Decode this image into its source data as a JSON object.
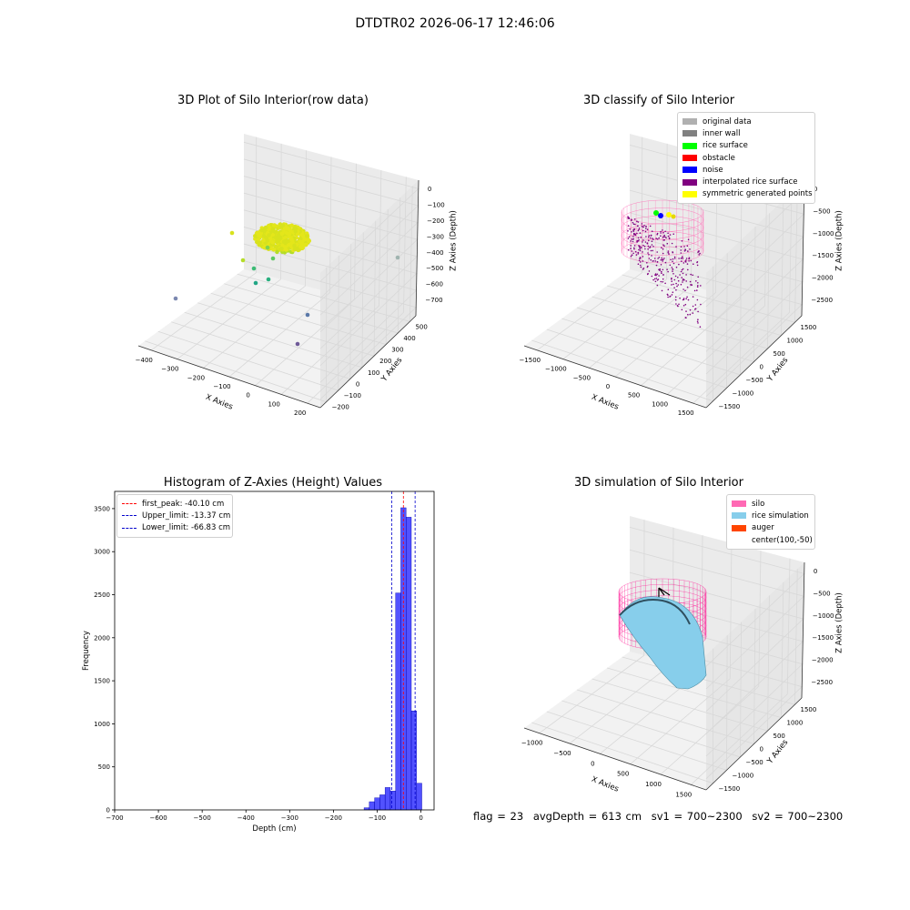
{
  "suptitle": "DTDTR02 2026-06-17 12:46:06",
  "panels": {
    "raw": {
      "title": "3D Plot of Silo Interior(row data)",
      "xlabel": "X Axies",
      "ylabel": "Y Axies",
      "zlabel": "Z Axies (Depth)",
      "xticks": [
        "−400",
        "−300",
        "−200",
        "−100",
        "0",
        "100",
        "200"
      ],
      "yticks": [
        "−200",
        "−100",
        "0",
        "100",
        "200",
        "300",
        "400",
        "500"
      ],
      "zticks": [
        "0",
        "−100",
        "−200",
        "−300",
        "−400",
        "−500",
        "−600",
        "−700"
      ]
    },
    "classify": {
      "title": "3D classify of Silo Interior",
      "xlabel": "X Axies",
      "ylabel": "Y Axies",
      "zlabel": "Z Axies (Depth)",
      "xticks": [
        "−1500",
        "−1000",
        "−500",
        "0",
        "500",
        "1000",
        "1500"
      ],
      "yticks": [
        "−1500",
        "−1000",
        "−500",
        "0",
        "500",
        "1000",
        "1500"
      ],
      "zticks": [
        "0",
        "−500",
        "−1000",
        "−1500",
        "−2000",
        "−2500"
      ],
      "legend": [
        {
          "label": "original data",
          "color": "#b0b0b0"
        },
        {
          "label": "inner wall",
          "color": "#808080"
        },
        {
          "label": "rice surface",
          "color": "#00ff00"
        },
        {
          "label": "obstacle",
          "color": "#ff0000"
        },
        {
          "label": "noise",
          "color": "#0000ff"
        },
        {
          "label": "interpolated rice surface",
          "color": "#800080"
        },
        {
          "label": "symmetric generated points",
          "color": "#ffff00"
        }
      ]
    },
    "simulation": {
      "title": "3D simulation of Silo Interior",
      "xlabel": "X Axies",
      "ylabel": "Y Axies",
      "zlabel": "Z Axies (Depth)",
      "xticks": [
        "−1000",
        "−500",
        "0",
        "500",
        "1000",
        "1500"
      ],
      "yticks": [
        "−1500",
        "−1000",
        "−500",
        "0",
        "500",
        "1000",
        "1500"
      ],
      "zticks": [
        "0",
        "−500",
        "−1000",
        "−1500",
        "−2000",
        "−2500"
      ],
      "legend": [
        {
          "label": "silo",
          "color": "#ff69b4"
        },
        {
          "label": "rice simulation",
          "color": "#87ceeb"
        },
        {
          "label": "auger",
          "color": "#ff4500"
        },
        {
          "label": "center(100,-50)",
          "color": ""
        }
      ]
    }
  },
  "chart_data": {
    "type": "bar",
    "title": "Histogram of Z-Axies (Height) Values",
    "xlabel": "Depth (cm)",
    "ylabel": "Frequency",
    "xlim": [
      -700,
      30
    ],
    "ylim": [
      0,
      3700
    ],
    "xticks": [
      "−700",
      "−600",
      "−500",
      "−400",
      "−300",
      "−200",
      "−100",
      "0"
    ],
    "xtick_values": [
      -700,
      -600,
      -500,
      -400,
      -300,
      -200,
      -100,
      0
    ],
    "yticks": [
      0,
      500,
      1000,
      1500,
      2000,
      2500,
      3000,
      3500
    ],
    "bar_color": "#0000ff",
    "bins": [
      {
        "x0": -130,
        "x1": -118,
        "value": 25
      },
      {
        "x0": -118,
        "x1": -106,
        "value": 95
      },
      {
        "x0": -106,
        "x1": -94,
        "value": 140
      },
      {
        "x0": -94,
        "x1": -82,
        "value": 175
      },
      {
        "x0": -82,
        "x1": -70,
        "value": 260
      },
      {
        "x0": -70,
        "x1": -58,
        "value": 220
      },
      {
        "x0": -58,
        "x1": -46,
        "value": 2520
      },
      {
        "x0": -46,
        "x1": -34,
        "value": 3510
      },
      {
        "x0": -34,
        "x1": -22,
        "value": 3400
      },
      {
        "x0": -22,
        "x1": -10,
        "value": 1150
      },
      {
        "x0": -10,
        "x1": 2,
        "value": 310
      }
    ],
    "lines": [
      {
        "label": "first_peak: -40.10 cm",
        "value": -40.1,
        "color": "#ff0000"
      },
      {
        "label": "Upper_limit: -13.37 cm",
        "value": -13.37,
        "color": "#0000cc"
      },
      {
        "label": "Lower_limit: -66.83 cm",
        "value": -66.83,
        "color": "#0000cc"
      }
    ]
  },
  "footer": {
    "flag": "flag = 23",
    "avg": "avgDepth = 613 cm",
    "sv1": "sv1 = 700~2300",
    "sv2": "sv2 = 700~2300"
  }
}
